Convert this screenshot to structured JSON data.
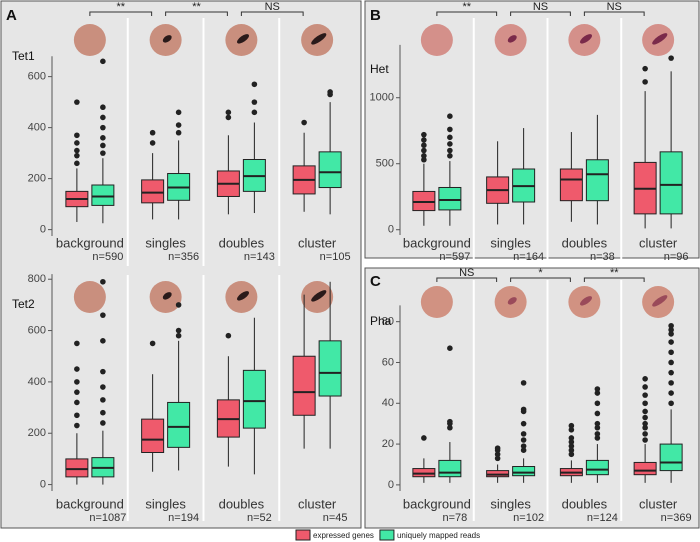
{
  "chart_data": [
    {
      "type": "box",
      "panel": "A",
      "title": "Tet1",
      "categories": [
        "background",
        "singles",
        "doubles",
        "cluster"
      ],
      "n_labels": [
        "n=590",
        "n=356",
        "n=143",
        "n=105"
      ],
      "significance": [
        "**",
        "**",
        "NS"
      ],
      "ylim": [
        -25,
        680
      ],
      "yticks": [
        0,
        200,
        400,
        600
      ],
      "grid": false,
      "series": [
        {
          "name": "expressed genes",
          "color": "#ef5a6c",
          "whislo": [
            30,
            40,
            60,
            70
          ],
          "q1": [
            90,
            105,
            130,
            140
          ],
          "median": [
            120,
            145,
            180,
            195
          ],
          "q3": [
            150,
            195,
            230,
            250
          ],
          "whishi": [
            240,
            300,
            370,
            380
          ],
          "outliers": [
            [
              260,
              290,
              310,
              340,
              370,
              500
            ],
            [
              340,
              380
            ],
            [
              440,
              460
            ],
            [
              420
            ]
          ]
        },
        {
          "name": "uniquely mapped reads",
          "color": "#42e8a6",
          "whislo": [
            25,
            40,
            65,
            60
          ],
          "q1": [
            95,
            115,
            150,
            165
          ],
          "median": [
            130,
            165,
            210,
            225
          ],
          "q3": [
            175,
            220,
            275,
            305
          ],
          "whishi": [
            280,
            350,
            420,
            500
          ],
          "outliers": [
            [
              300,
              330,
              360,
              400,
              440,
              480,
              660
            ],
            [
              380,
              410,
              460
            ],
            [
              460,
              500,
              570
            ],
            [
              530,
              540
            ]
          ]
        }
      ]
    },
    {
      "type": "box",
      "title": "Tet2",
      "categories": [
        "background",
        "singles",
        "doubles",
        "cluster"
      ],
      "n_labels": [
        "n=1087",
        "n=194",
        "n=52",
        "n=45"
      ],
      "ylim": [
        -25,
        820
      ],
      "yticks": [
        0,
        200,
        400,
        600,
        800
      ],
      "grid": false,
      "series": [
        {
          "name": "expressed genes",
          "color": "#ef5a6c",
          "whislo": [
            0,
            50,
            70,
            140
          ],
          "q1": [
            30,
            125,
            185,
            270
          ],
          "median": [
            60,
            175,
            255,
            360
          ],
          "q3": [
            100,
            255,
            330,
            500
          ],
          "whishi": [
            200,
            430,
            500,
            740
          ],
          "outliers": [
            [
              230,
              270,
              320,
              360,
              400,
              450,
              550
            ],
            [
              550
            ],
            [
              580
            ],
            []
          ]
        },
        {
          "name": "uniquely mapped reads",
          "color": "#42e8a6",
          "whislo": [
            0,
            55,
            40,
            140
          ],
          "q1": [
            30,
            145,
            220,
            345
          ],
          "median": [
            65,
            225,
            325,
            435
          ],
          "q3": [
            105,
            320,
            445,
            560
          ],
          "whishi": [
            210,
            560,
            650,
            790
          ],
          "outliers": [
            [
              240,
              280,
              330,
              380,
              440,
              560,
              660,
              790
            ],
            [
              580,
              600,
              700
            ],
            [],
            []
          ]
        }
      ]
    },
    {
      "type": "box",
      "panel": "B",
      "title": "Het",
      "categories": [
        "background",
        "singles",
        "doubles",
        "cluster"
      ],
      "n_labels": [
        "n=597",
        "n=164",
        "n=38",
        "n=96"
      ],
      "significance": [
        "**",
        "NS",
        "NS"
      ],
      "ylim": [
        -40,
        1400
      ],
      "yticks": [
        0,
        500,
        1000
      ],
      "grid": false,
      "series": [
        {
          "name": "expressed genes",
          "color": "#ef5a6c",
          "whislo": [
            30,
            40,
            60,
            10
          ],
          "q1": [
            145,
            200,
            220,
            120
          ],
          "median": [
            210,
            300,
            380,
            310
          ],
          "q3": [
            290,
            400,
            460,
            510
          ],
          "whishi": [
            500,
            670,
            740,
            1050
          ],
          "outliers": [
            [
              530,
              560,
              600,
              640,
              680,
              720
            ],
            [],
            [],
            [
              1120,
              1220
            ]
          ]
        },
        {
          "name": "uniquely mapped reads",
          "color": "#42e8a6",
          "whislo": [
            30,
            40,
            40,
            10
          ],
          "q1": [
            150,
            210,
            220,
            120
          ],
          "median": [
            225,
            330,
            420,
            340
          ],
          "q3": [
            320,
            460,
            530,
            590
          ],
          "whishi": [
            520,
            770,
            870,
            1200
          ],
          "outliers": [
            [
              560,
              600,
              650,
              700,
              760,
              860
            ],
            [],
            [],
            [
              1300
            ]
          ]
        }
      ]
    },
    {
      "type": "box",
      "panel": "C",
      "title": "Pha",
      "categories": [
        "background",
        "singles",
        "doubles",
        "cluster"
      ],
      "n_labels": [
        "n=78",
        "n=102",
        "n=124",
        "n=369"
      ],
      "significance": [
        "NS",
        "*",
        "**"
      ],
      "ylim": [
        -3,
        88
      ],
      "yticks": [
        0,
        20,
        40,
        60,
        80
      ],
      "grid": false,
      "series": [
        {
          "name": "expressed genes",
          "color": "#ef5a6c",
          "whislo": [
            1,
            1,
            1,
            1
          ],
          "q1": [
            4,
            4,
            4.5,
            5
          ],
          "median": [
            5.5,
            5,
            6,
            7
          ],
          "q3": [
            8,
            7,
            8,
            11
          ],
          "whishi": [
            13,
            10,
            12,
            20
          ],
          "outliers": [
            [
              23
            ],
            [
              13,
              15,
              17,
              18
            ],
            [
              15,
              17,
              19,
              21,
              23,
              27,
              29
            ],
            [
              22,
              25,
              28,
              30,
              33,
              36,
              40,
              44,
              48,
              52
            ]
          ]
        },
        {
          "name": "uniquely mapped reads",
          "color": "#42e8a6",
          "whislo": [
            1,
            1,
            1,
            1
          ],
          "q1": [
            4,
            4.5,
            5,
            7
          ],
          "median": [
            6,
            6,
            7.5,
            11
          ],
          "q3": [
            12,
            9,
            12,
            20
          ],
          "whishi": [
            21,
            13,
            20,
            37
          ],
          "outliers": [
            [
              28,
              30,
              31,
              67
            ],
            [
              17,
              19,
              22,
              25,
              30,
              36,
              37,
              50
            ],
            [
              23,
              25,
              28,
              30,
              35,
              40,
              45,
              47
            ],
            [
              40,
              45,
              50,
              55,
              60,
              65,
              70,
              74,
              76,
              78
            ]
          ]
        }
      ]
    }
  ]
}
